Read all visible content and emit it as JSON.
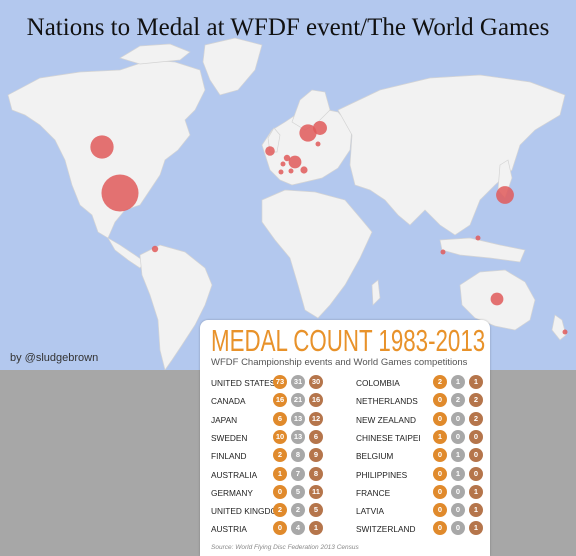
{
  "title": "Nations to Medal at WFDF event/The World Games",
  "byline": "by @sludgebrown",
  "colors": {
    "ocean": "#b3c8ee",
    "land": "#f2f2f2",
    "marker": "#e05a5a",
    "gold": "#e08a2c",
    "silver": "#a8a8a8",
    "bronze": "#b5754b",
    "title_orange": "#e8922a"
  },
  "card": {
    "title": "MEDAL COUNT 1983-2013",
    "subtitle": "WFDF Championship events and World Games competitions",
    "source": "Source: World Flying Disc Federation 2013 Census",
    "left_column": [
      {
        "country": "UNITED STATES",
        "gold": "73",
        "silver": "31",
        "bronze": "30"
      },
      {
        "country": "CANADA",
        "gold": "16",
        "silver": "21",
        "bronze": "16"
      },
      {
        "country": "JAPAN",
        "gold": "6",
        "silver": "13",
        "bronze": "12"
      },
      {
        "country": "SWEDEN",
        "gold": "10",
        "silver": "13",
        "bronze": "6"
      },
      {
        "country": "FINLAND",
        "gold": "2",
        "silver": "8",
        "bronze": "9"
      },
      {
        "country": "AUSTRALIA",
        "gold": "1",
        "silver": "7",
        "bronze": "8"
      },
      {
        "country": "GERMANY",
        "gold": "0",
        "silver": "5",
        "bronze": "11"
      },
      {
        "country": "UNITED KINGDOM",
        "gold": "2",
        "silver": "2",
        "bronze": "5"
      },
      {
        "country": "AUSTRIA",
        "gold": "0",
        "silver": "4",
        "bronze": "1"
      }
    ],
    "right_column": [
      {
        "country": "COLOMBIA",
        "gold": "2",
        "silver": "1",
        "bronze": "1"
      },
      {
        "country": "NETHERLANDS",
        "gold": "0",
        "silver": "2",
        "bronze": "2"
      },
      {
        "country": "NEW ZEALAND",
        "gold": "0",
        "silver": "0",
        "bronze": "2"
      },
      {
        "country": "CHINESE TAIPEI",
        "gold": "1",
        "silver": "0",
        "bronze": "0"
      },
      {
        "country": "BELGIUM",
        "gold": "0",
        "silver": "1",
        "bronze": "0"
      },
      {
        "country": "PHILIPPINES",
        "gold": "0",
        "silver": "1",
        "bronze": "0"
      },
      {
        "country": "FRANCE",
        "gold": "0",
        "silver": "0",
        "bronze": "1"
      },
      {
        "country": "LATVIA",
        "gold": "0",
        "silver": "0",
        "bronze": "1"
      },
      {
        "country": "SWITZERLAND",
        "gold": "0",
        "silver": "0",
        "bronze": "1"
      }
    ]
  },
  "markers": [
    {
      "name": "United States",
      "total": 134
    },
    {
      "name": "Canada",
      "total": 53
    },
    {
      "name": "Japan",
      "total": 31
    },
    {
      "name": "Sweden",
      "total": 29
    },
    {
      "name": "Finland",
      "total": 19
    },
    {
      "name": "Australia",
      "total": 16
    },
    {
      "name": "Germany",
      "total": 16
    },
    {
      "name": "United Kingdom",
      "total": 9
    },
    {
      "name": "Austria",
      "total": 5
    },
    {
      "name": "Colombia",
      "total": 4
    },
    {
      "name": "Netherlands",
      "total": 4
    },
    {
      "name": "New Zealand",
      "total": 2
    },
    {
      "name": "Chinese Taipei",
      "total": 1
    },
    {
      "name": "Belgium",
      "total": 1
    },
    {
      "name": "Philippines",
      "total": 1
    },
    {
      "name": "France",
      "total": 1
    },
    {
      "name": "Latvia",
      "total": 1
    },
    {
      "name": "Switzerland",
      "total": 1
    }
  ]
}
